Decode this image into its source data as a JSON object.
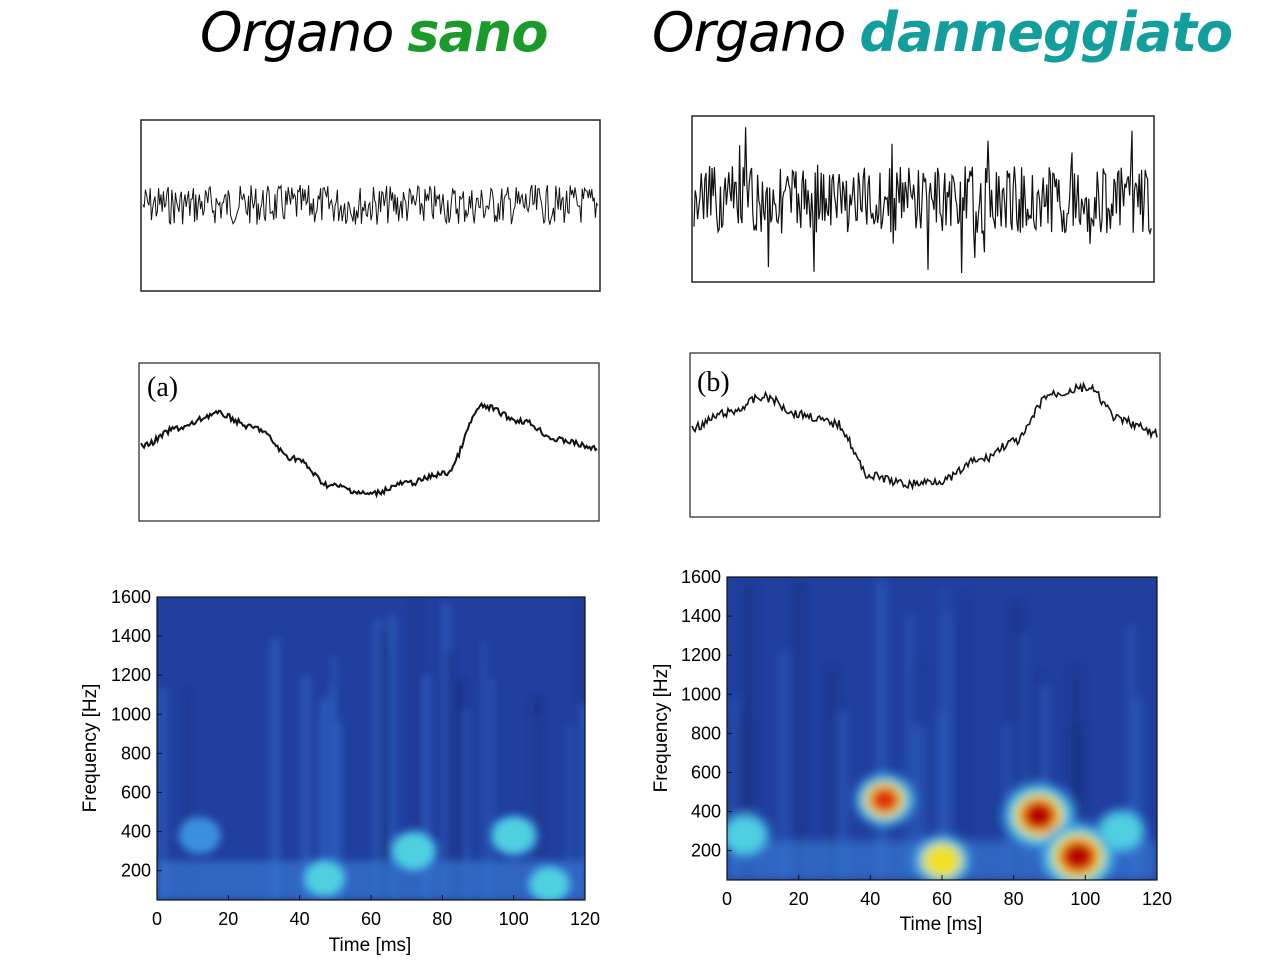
{
  "headings": {
    "left": {
      "word": "Organo",
      "state": "sano",
      "state_color": "#1a9a2a"
    },
    "right": {
      "word": "Organo",
      "state": "danneggiato",
      "state_color": "#139e9e"
    }
  },
  "chart_data": [
    {
      "type": "line",
      "panel": "signal-left",
      "amplitude": 0.28,
      "description_values": "noise",
      "series": [
        {
          "values": []
        }
      ]
    },
    {
      "type": "line",
      "panel": "signal-right",
      "amplitude": 0.75,
      "series": [
        {
          "values": []
        }
      ]
    },
    {
      "type": "line",
      "panel": "envelope-left",
      "label": "(a)",
      "series": [
        {
          "values": [
            0.45,
            0.6,
            0.72,
            0.6,
            0.35,
            0.12,
            0.05,
            0.14,
            0.22,
            0.78,
            0.66,
            0.5,
            0.43
          ]
        }
      ]
    },
    {
      "type": "line",
      "panel": "envelope-right",
      "label": "(b)",
      "series": [
        {
          "values": [
            0.55,
            0.66,
            0.78,
            0.65,
            0.58,
            0.18,
            0.12,
            0.15,
            0.3,
            0.44,
            0.8,
            0.85,
            0.6,
            0.5
          ]
        }
      ]
    },
    {
      "type": "heatmap",
      "panel": "scalogram-left",
      "xlabel": "Time [ms]",
      "ylabel": "Frequency [Hz]",
      "xticks": [
        "0",
        "20",
        "40",
        "60",
        "80",
        "100",
        "120"
      ],
      "yticks": [
        "200",
        "400",
        "600",
        "800",
        "1000",
        "1200",
        "1400",
        "1600"
      ],
      "xlim": [
        0,
        120
      ],
      "ylim": [
        50,
        1600
      ],
      "hotspots": [
        {
          "t": 12,
          "f": 380,
          "i": 0.35
        },
        {
          "t": 47,
          "f": 160,
          "i": 0.4
        },
        {
          "t": 72,
          "f": 300,
          "i": 0.45
        },
        {
          "t": 100,
          "f": 380,
          "i": 0.45
        },
        {
          "t": 110,
          "f": 130,
          "i": 0.4
        }
      ]
    },
    {
      "type": "heatmap",
      "panel": "scalogram-right",
      "xlabel": "Time [ms]",
      "ylabel": "Frequency [Hz]",
      "xticks": [
        "0",
        "20",
        "40",
        "60",
        "80",
        "100",
        "120"
      ],
      "yticks": [
        "200",
        "400",
        "600",
        "800",
        "1000",
        "1200",
        "1400",
        "1600"
      ],
      "xlim": [
        0,
        120
      ],
      "ylim": [
        50,
        1600
      ],
      "hotspots": [
        {
          "t": 5,
          "f": 280,
          "i": 0.5
        },
        {
          "t": 44,
          "f": 460,
          "i": 0.7
        },
        {
          "t": 60,
          "f": 150,
          "i": 0.65
        },
        {
          "t": 87,
          "f": 380,
          "i": 0.95
        },
        {
          "t": 98,
          "f": 170,
          "i": 1.0
        },
        {
          "t": 110,
          "f": 300,
          "i": 0.5
        }
      ]
    }
  ],
  "colors": {
    "plot_bg": "#1f3f9e",
    "trace": "#111111"
  }
}
